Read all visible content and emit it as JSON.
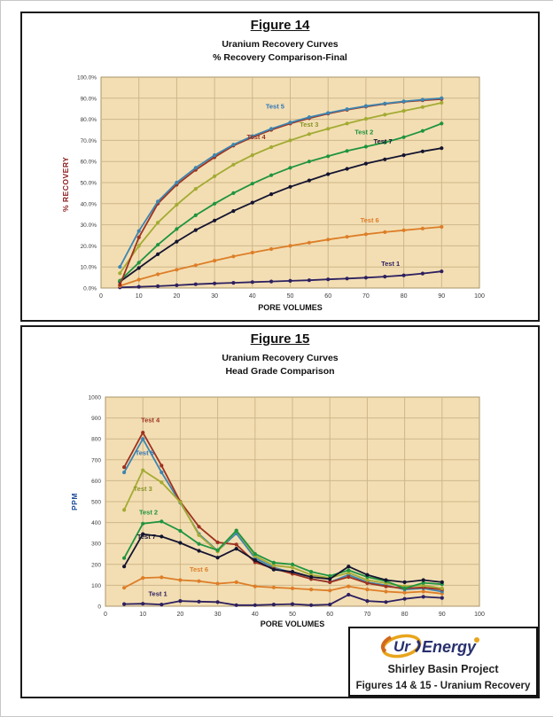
{
  "colors": {
    "plot_bg": "#f3deb3",
    "grid": "#cdb68a",
    "plot_border": "#a89468",
    "tick": "#3a3a3a",
    "frame": "#1a1a1a",
    "recovery_axis": "#8b1a1a",
    "ppm_axis": "#1f4e9c",
    "logo_navy": "#28306e",
    "logo_gold": "#e8a51c",
    "logo_orange": "#d2691e"
  },
  "figures": [
    {
      "title": "Figure 14",
      "subtitle1": "Uranium Recovery Curves",
      "subtitle2": "% Recovery Comparison-Final",
      "xlabel": "PORE VOLUMES",
      "ylabel": "% RECOVERY",
      "ylabel_color": "#8b1a1a",
      "chart_data": {
        "type": "line",
        "x": [
          5,
          10,
          15,
          20,
          25,
          30,
          35,
          40,
          45,
          50,
          55,
          60,
          65,
          70,
          75,
          80,
          85,
          90
        ],
        "xlim": [
          0,
          100
        ],
        "ylim": [
          0,
          100
        ],
        "xticks": [
          0,
          10,
          20,
          30,
          40,
          50,
          60,
          70,
          80,
          90,
          100
        ],
        "xticklabels": [
          "0",
          "10",
          "20",
          "30",
          "40",
          "50",
          "60",
          "70",
          "80",
          "90",
          "100"
        ],
        "yticks": [
          0,
          10,
          20,
          30,
          40,
          50,
          60,
          70,
          80,
          90,
          100
        ],
        "yticklabels": [
          "0.0%",
          "10.0%",
          "20.0%",
          "30.0%",
          "40.0%",
          "50.0%",
          "60.0%",
          "70.0%",
          "80.0%",
          "90.0%",
          "100.0%"
        ],
        "grid": true,
        "series": [
          {
            "name": "Test 1",
            "color": "#2d2060",
            "values": [
              0.3,
              0.6,
              0.9,
              1.3,
              1.8,
              2.2,
              2.5,
              2.8,
              3.1,
              3.4,
              3.7,
              4.1,
              4.5,
              4.9,
              5.4,
              6.0,
              6.9,
              7.9
            ]
          },
          {
            "name": "Test 6",
            "color": "#dd7e28",
            "values": [
              1,
              4,
              6.5,
              8.7,
              10.8,
              13,
              15,
              16.8,
              18.5,
              20,
              21.5,
              23,
              24.3,
              25.5,
              26.5,
              27.4,
              28.2,
              29
            ]
          },
          {
            "name": "Test 7",
            "color": "#141430",
            "values": [
              3,
              9.5,
              16,
              22,
              27.5,
              32,
              36.5,
              40.5,
              44.5,
              48,
              51,
              54,
              56.5,
              59,
              61,
              63,
              64.8,
              66.3
            ]
          },
          {
            "name": "Test 2",
            "color": "#1f9440",
            "values": [
              3.5,
              12,
              20.5,
              28,
              34.5,
              40,
              45,
              49.5,
              53.5,
              57,
              60,
              62.5,
              65,
              67,
              69,
              71.5,
              74.5,
              78
            ]
          },
          {
            "name": "Test 3",
            "color": "#a3ab33",
            "values": [
              7,
              20,
              31,
              39.5,
              47,
              53,
              58.5,
              63,
              66.8,
              70,
              73,
              75.5,
              78,
              80.2,
              82.2,
              84,
              85.8,
              87.8
            ]
          },
          {
            "name": "Test 4",
            "color": "#9e3120",
            "values": [
              1.5,
              24,
              40,
              49,
              56,
              62,
              67.5,
              71.5,
              75,
              78,
              80.5,
              82.7,
              84.5,
              86,
              87.3,
              88.3,
              89,
              89.6
            ]
          },
          {
            "name": "Test 5",
            "color": "#3d85b0",
            "values": [
              10,
              27,
              41,
              50,
              57,
              63,
              68,
              72,
              75.5,
              78.5,
              81,
              83,
              84.8,
              86.3,
              87.5,
              88.5,
              89.3,
              90
            ]
          }
        ],
        "labels": [
          {
            "text": "Test 5",
            "x": 46,
            "y": 85,
            "color": "#2f74b5"
          },
          {
            "text": "Test 4",
            "x": 41,
            "y": 70.5,
            "color": "#9e3120"
          },
          {
            "text": "Test 3",
            "x": 55,
            "y": 76.5,
            "color": "#8a9428"
          },
          {
            "text": "Test 2",
            "x": 69.5,
            "y": 73,
            "color": "#1f9440"
          },
          {
            "text": "Test 7",
            "x": 74.5,
            "y": 68.5,
            "color": "#141430"
          },
          {
            "text": "Test 6",
            "x": 71,
            "y": 31,
            "color": "#dd7e28"
          },
          {
            "text": "Test 1",
            "x": 76.5,
            "y": 10.5,
            "color": "#2d2060"
          }
        ]
      }
    },
    {
      "title": "Figure 15",
      "subtitle1": "Uranium Recovery Curves",
      "subtitle2": "Head Grade Comparison",
      "xlabel": "PORE VOLUMES",
      "ylabel": "PPM",
      "ylabel_color": "#1f4e9c",
      "chart_data": {
        "type": "line",
        "x": [
          5,
          10,
          15,
          20,
          25,
          30,
          35,
          40,
          45,
          50,
          55,
          60,
          65,
          70,
          75,
          80,
          85,
          90
        ],
        "xlim": [
          0,
          100
        ],
        "ylim": [
          0,
          1000
        ],
        "xticks": [
          0,
          10,
          20,
          30,
          40,
          50,
          60,
          70,
          80,
          90,
          100
        ],
        "xticklabels": [
          "0",
          "10",
          "20",
          "30",
          "40",
          "50",
          "60",
          "70",
          "80",
          "90",
          "100"
        ],
        "yticks": [
          0,
          100,
          200,
          300,
          400,
          500,
          600,
          700,
          800,
          900,
          1000
        ],
        "yticklabels": [
          "0",
          "100",
          "200",
          "300",
          "400",
          "500",
          "600",
          "700",
          "800",
          "900",
          "1000"
        ],
        "grid": true,
        "series": [
          {
            "name": "Test 6",
            "color": "#dd7e28",
            "values": [
              88,
              135,
              138,
              125,
              120,
              108,
              115,
              95,
              90,
              85,
              80,
              75,
              95,
              80,
              70,
              65,
              70,
              60
            ]
          },
          {
            "name": "Test 1",
            "color": "#2d2060",
            "values": [
              10,
              12,
              8,
              25,
              22,
              20,
              5,
              5,
              8,
              10,
              5,
              8,
              55,
              25,
              20,
              35,
              45,
              40
            ]
          },
          {
            "name": "Test 5",
            "color": "#3d85b0",
            "values": [
              640,
              800,
              640,
              495,
              345,
              265,
              348,
              230,
              185,
              160,
              130,
              115,
              150,
              115,
              100,
              80,
              85,
              70
            ]
          },
          {
            "name": "Test 4",
            "color": "#9e3120",
            "values": [
              665,
              830,
              672,
              500,
              380,
              305,
              295,
              210,
              180,
              155,
              130,
              115,
              140,
              110,
              95,
              85,
              90,
              80
            ]
          },
          {
            "name": "Test 3",
            "color": "#a3ab33",
            "values": [
              460,
              650,
              592,
              498,
              340,
              262,
              362,
              240,
              195,
              185,
              150,
              135,
              160,
              125,
              110,
              95,
              100,
              85
            ]
          },
          {
            "name": "Test 2",
            "color": "#1f9440",
            "values": [
              230,
              395,
              405,
              360,
              298,
              268,
              362,
              250,
              208,
              200,
              165,
              145,
              172,
              140,
              120,
              85,
              112,
              105
            ]
          },
          {
            "name": "Test 7",
            "color": "#141430",
            "values": [
              190,
              345,
              333,
              303,
              265,
              232,
              275,
              220,
              175,
              165,
              140,
              130,
              190,
              150,
              125,
              115,
              125,
              115
            ]
          }
        ],
        "labels": [
          {
            "text": "Test 4",
            "x": 12,
            "y": 880,
            "color": "#9e3120"
          },
          {
            "text": "Test 5",
            "x": 10.5,
            "y": 722,
            "color": "#2f74b5"
          },
          {
            "text": "Test 3",
            "x": 10,
            "y": 550,
            "color": "#8a9428"
          },
          {
            "text": "Test 2",
            "x": 11.5,
            "y": 438,
            "color": "#1f9440"
          },
          {
            "text": "Test 7",
            "x": 11,
            "y": 322,
            "color": "#141430"
          },
          {
            "text": "Test 6",
            "x": 25,
            "y": 165,
            "color": "#dd7e28"
          },
          {
            "text": "Test 1",
            "x": 14,
            "y": 48,
            "color": "#2d2060"
          }
        ]
      }
    }
  ],
  "title_block": {
    "logo_ur": "Ur",
    "logo_energy": "Energy",
    "line1": "Shirley Basin Project",
    "line2": "Figures 14 & 15 - Uranium Recovery"
  }
}
